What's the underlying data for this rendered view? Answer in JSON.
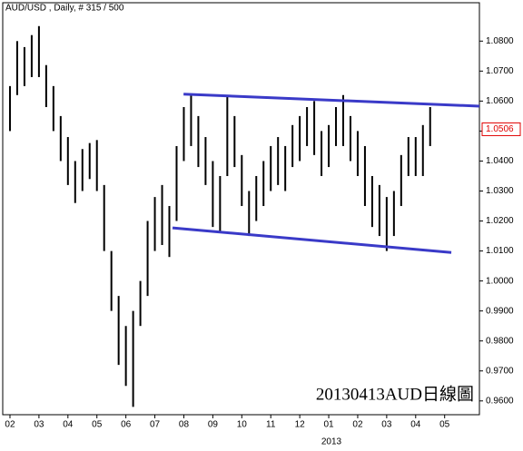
{
  "chart_data": {
    "type": "hlbar",
    "title": "AUD/USD , Daily, # 315 / 500",
    "watermark": "20130413AUD日線圖",
    "year_label": "2013",
    "color": "#000000",
    "x": [
      0,
      0.25,
      0.5,
      0.75,
      1,
      1.25,
      1.5,
      1.75,
      2,
      2.25,
      2.5,
      2.75,
      3,
      3.25,
      3.5,
      3.75,
      4,
      4.25,
      4.5,
      4.75,
      5,
      5.25,
      5.5,
      5.75,
      6,
      6.25,
      6.5,
      6.75,
      7,
      7.25,
      7.5,
      7.75,
      8,
      8.25,
      8.5,
      8.75,
      9,
      9.25,
      9.5,
      9.75,
      10,
      10.25,
      10.5,
      10.75,
      11,
      11.25,
      11.5,
      11.75,
      12,
      12.25,
      12.5,
      12.75,
      13,
      13.25,
      13.5,
      13.75,
      14,
      14.25,
      14.5
    ],
    "high": [
      1.065,
      1.08,
      1.078,
      1.082,
      1.085,
      1.072,
      1.065,
      1.055,
      1.048,
      1.04,
      1.044,
      1.046,
      1.047,
      1.032,
      1.01,
      0.995,
      0.985,
      0.99,
      1.0,
      1.02,
      1.028,
      1.032,
      1.025,
      1.045,
      1.058,
      1.062,
      1.055,
      1.048,
      1.04,
      1.035,
      1.062,
      1.055,
      1.042,
      1.03,
      1.035,
      1.04,
      1.045,
      1.048,
      1.045,
      1.052,
      1.055,
      1.058,
      1.06,
      1.05,
      1.052,
      1.058,
      1.062,
      1.055,
      1.05,
      1.045,
      1.035,
      1.032,
      1.028,
      1.03,
      1.042,
      1.048,
      1.048,
      1.052,
      1.058
    ],
    "low": [
      1.05,
      1.062,
      1.065,
      1.068,
      1.068,
      1.058,
      1.05,
      1.04,
      1.032,
      1.026,
      1.03,
      1.034,
      1.03,
      1.01,
      0.99,
      0.972,
      0.965,
      0.958,
      0.985,
      0.995,
      1.01,
      1.012,
      1.008,
      1.02,
      1.04,
      1.045,
      1.038,
      1.032,
      1.018,
      1.016,
      1.035,
      1.038,
      1.025,
      1.015,
      1.02,
      1.025,
      1.03,
      1.032,
      1.03,
      1.038,
      1.04,
      1.045,
      1.042,
      1.035,
      1.038,
      1.045,
      1.045,
      1.04,
      1.035,
      1.025,
      1.018,
      1.015,
      1.01,
      1.015,
      1.025,
      1.035,
      1.035,
      1.035,
      1.045
    ],
    "trendlines": [
      {
        "x": [
          5.99,
          16.2
        ],
        "y": [
          1.0623,
          1.0583
        ]
      },
      {
        "x": [
          5.61,
          15.23
        ],
        "y": [
          1.0177,
          1.0095
        ]
      }
    ],
    "trendline_color": "#3a3ac8",
    "last_price": 1.0506,
    "last_price_color": "#e00000",
    "xlim": [
      -0.25,
      16.2
    ],
    "ylim": [
      0.9554,
      1.0928
    ],
    "xticks": [
      {
        "value": 0,
        "label": "02"
      },
      {
        "value": 1,
        "label": "03"
      },
      {
        "value": 2,
        "label": "04"
      },
      {
        "value": 3,
        "label": "05"
      },
      {
        "value": 4,
        "label": "06"
      },
      {
        "value": 5,
        "label": "07"
      },
      {
        "value": 6,
        "label": "08"
      },
      {
        "value": 7,
        "label": "09"
      },
      {
        "value": 8,
        "label": "10"
      },
      {
        "value": 9,
        "label": "11"
      },
      {
        "value": 10,
        "label": "12"
      },
      {
        "value": 11,
        "label": "01"
      },
      {
        "value": 12,
        "label": "02"
      },
      {
        "value": 13,
        "label": "03"
      },
      {
        "value": 14,
        "label": "04"
      },
      {
        "value": 15,
        "label": "05"
      }
    ],
    "yticks": [
      {
        "value": 0.96,
        "label": "0.9600"
      },
      {
        "value": 0.97,
        "label": "0.9700"
      },
      {
        "value": 0.98,
        "label": "0.9800"
      },
      {
        "value": 0.99,
        "label": "0.9900"
      },
      {
        "value": 1.0,
        "label": "1.0000"
      },
      {
        "value": 1.01,
        "label": "1.0100"
      },
      {
        "value": 1.02,
        "label": "1.0200"
      },
      {
        "value": 1.03,
        "label": "1.0300"
      },
      {
        "value": 1.04,
        "label": "1.0400"
      },
      {
        "value": 1.05,
        "label": "1.0500"
      },
      {
        "value": 1.06,
        "label": "1.0600"
      },
      {
        "value": 1.07,
        "label": "1.0700"
      },
      {
        "value": 1.08,
        "label": "1.0800"
      }
    ]
  }
}
